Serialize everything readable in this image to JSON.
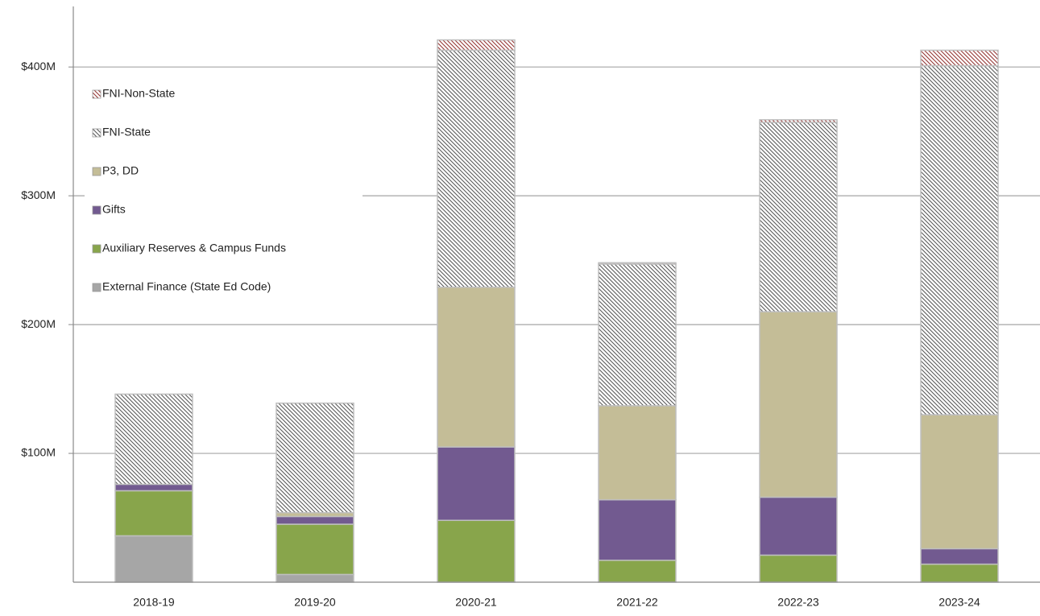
{
  "chart_data": {
    "type": "stacked_bar",
    "categories": [
      "2018-19",
      "2019-20",
      "2020-21",
      "2021-22",
      "2022-23",
      "2023-24"
    ],
    "series": [
      {
        "name": "External Finance (State Ed Code)",
        "color": "#a6a6a6",
        "values": [
          36,
          6,
          0,
          0,
          0,
          0
        ]
      },
      {
        "name": "Auxiliary Reserves & Campus Funds",
        "color": "#88a54b",
        "values": [
          35,
          39,
          48,
          17,
          21,
          14
        ]
      },
      {
        "name": "Gifts",
        "color": "#725a90",
        "values": [
          5,
          6,
          57,
          47,
          45,
          12
        ]
      },
      {
        "name": "P3, DD",
        "color": "#c4bd97",
        "values": [
          0,
          3,
          124,
          73,
          144,
          104
        ]
      },
      {
        "name": "FNI-State",
        "color": "#595959",
        "pattern": "hatch",
        "values": [
          70,
          85,
          184,
          110,
          147,
          271
        ]
      },
      {
        "name": "FNI-Non-State",
        "color": "#953735",
        "pattern": "hatch",
        "values": [
          0,
          0,
          8,
          1,
          2,
          12
        ]
      }
    ],
    "ylim": [
      0,
      447
    ],
    "yticks": [
      {
        "value": 100,
        "label": "$100M"
      },
      {
        "value": 200,
        "label": "$200M"
      },
      {
        "value": 300,
        "label": "$300M"
      },
      {
        "value": 400,
        "label": "$400M"
      }
    ],
    "grid": true,
    "legend": "upper left"
  }
}
